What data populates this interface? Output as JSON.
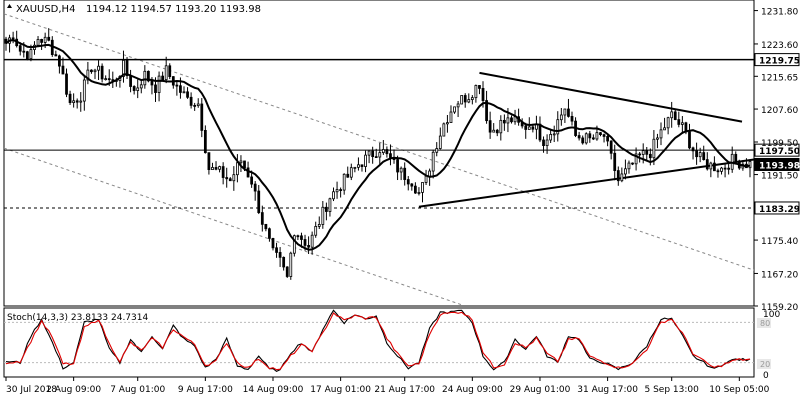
{
  "header": {
    "symbol": "XAUUSD,H4",
    "values": "1194.12 1194.57 1193.20 1193.98"
  },
  "stoch": {
    "label": "Stoch(14,3,3) 23.8133 24.7314",
    "ticks": [
      "100",
      "0"
    ],
    "levels": [
      "80",
      "20"
    ]
  },
  "colors": {
    "candle": "#000000",
    "ma": "#000000",
    "stoch_main": "#000000",
    "stoch_signal": "#e00000",
    "grid": "#cfcfcf",
    "axis": "#000000"
  },
  "chart_data": [
    {
      "type": "candlestick",
      "title": "",
      "ylim": [
        1159.2,
        1234.4
      ],
      "ytick_labels": [
        "1231.80",
        "1223.60",
        "1215.65",
        "1207.60",
        "1199.50",
        "1191.50",
        "1183.29",
        "1175.40",
        "1167.20",
        "1159.20"
      ],
      "xtick_labels": [
        "30 Jul 2018",
        "2 Aug 09:00",
        "7 Aug 01:00",
        "9 Aug 17:00",
        "14 Aug 09:00",
        "17 Aug 01:00",
        "21 Aug 17:00",
        "24 Aug 09:00",
        "29 Aug 01:00",
        "31 Aug 17:00",
        "5 Sep 13:00",
        "10 Sep 05:00"
      ],
      "price_labels": [
        {
          "label": "1219.75",
          "value": 1219.75,
          "style": "solid"
        },
        {
          "label": "1197.50",
          "value": 1197.5,
          "style": "solid"
        },
        {
          "label": "1193.98",
          "value": 1193.98,
          "style": "current"
        },
        {
          "label": "1183.29",
          "value": 1183.29,
          "style": "dashed"
        }
      ],
      "series": [
        {
          "anchors": [
            [
              0,
              1223.8
            ],
            [
              2,
              1226
            ],
            [
              4,
              1222
            ],
            [
              7,
              1221
            ],
            [
              9,
              1225
            ],
            [
              12,
              1224
            ],
            [
              15,
              1219
            ],
            [
              18,
              1209
            ],
            [
              21,
              1211
            ],
            [
              24,
              1218
            ],
            [
              27,
              1216
            ],
            [
              30,
              1214
            ],
            [
              33,
              1218
            ],
            [
              36,
              1212
            ],
            [
              39,
              1216
            ],
            [
              42,
              1213
            ],
            [
              45,
              1217
            ],
            [
              48,
              1213
            ],
            [
              51,
              1210
            ],
            [
              54,
              1209
            ],
            [
              57,
              1193
            ],
            [
              60,
              1192
            ],
            [
              63,
              1190
            ],
            [
              66,
              1195
            ],
            [
              69,
              1190
            ],
            [
              72,
              1180
            ],
            [
              75,
              1172
            ],
            [
              77,
              1170
            ],
            [
              79,
              1166
            ],
            [
              81,
              1178
            ],
            [
              83,
              1176
            ],
            [
              85,
              1174
            ],
            [
              87,
              1178
            ],
            [
              89,
              1182
            ],
            [
              91,
              1186
            ],
            [
              93,
              1188
            ],
            [
              96,
              1191
            ],
            [
              99,
              1194
            ],
            [
              102,
              1196
            ],
            [
              105,
              1198
            ],
            [
              108,
              1195
            ],
            [
              111,
              1192
            ],
            [
              114,
              1190
            ],
            [
              116,
              1187
            ],
            [
              118,
              1190
            ],
            [
              120,
              1197
            ],
            [
              123,
              1204
            ],
            [
              126,
              1209
            ],
            [
              130,
              1211
            ],
            [
              133,
              1214
            ],
            [
              136,
              1202
            ],
            [
              139,
              1204
            ],
            [
              142,
              1205
            ],
            [
              145,
              1203
            ],
            [
              148,
              1204
            ],
            [
              151,
              1200
            ],
            [
              154,
              1203
            ],
            [
              157,
              1208
            ],
            [
              160,
              1201
            ],
            [
              164,
              1200
            ],
            [
              168,
              1201
            ],
            [
              172,
              1190
            ],
            [
              175,
              1193
            ],
            [
              178,
              1196
            ],
            [
              181,
              1197
            ],
            [
              184,
              1202
            ],
            [
              187,
              1206
            ],
            [
              190,
              1203
            ],
            [
              194,
              1196
            ],
            [
              197,
              1194
            ],
            [
              201,
              1193
            ],
            [
              204,
              1195
            ],
            [
              208,
              1194.2
            ]
          ]
        }
      ]
    },
    {
      "type": "line",
      "title": "Stoch(14,3,3) 23.8133 24.7314",
      "ylim": [
        0,
        100
      ],
      "series": [
        {
          "name": "main",
          "anchors": [
            [
              0,
              22
            ],
            [
              4,
              20
            ],
            [
              7,
              60
            ],
            [
              10,
              85
            ],
            [
              13,
              50
            ],
            [
              16,
              12
            ],
            [
              19,
              20
            ],
            [
              22,
              80
            ],
            [
              26,
              85
            ],
            [
              29,
              40
            ],
            [
              32,
              20
            ],
            [
              35,
              55
            ],
            [
              38,
              35
            ],
            [
              41,
              60
            ],
            [
              44,
              40
            ],
            [
              47,
              75
            ],
            [
              50,
              55
            ],
            [
              53,
              45
            ],
            [
              56,
              12
            ],
            [
              59,
              25
            ],
            [
              62,
              55
            ],
            [
              65,
              15
            ],
            [
              68,
              10
            ],
            [
              71,
              30
            ],
            [
              74,
              10
            ],
            [
              77,
              8
            ],
            [
              80,
              35
            ],
            [
              83,
              50
            ],
            [
              86,
              35
            ],
            [
              89,
              70
            ],
            [
              92,
              98
            ],
            [
              95,
              80
            ],
            [
              98,
              92
            ],
            [
              101,
              85
            ],
            [
              104,
              90
            ],
            [
              107,
              50
            ],
            [
              110,
              30
            ],
            [
              113,
              12
            ],
            [
              116,
              20
            ],
            [
              119,
              70
            ],
            [
              122,
              95
            ],
            [
              125,
              95
            ],
            [
              128,
              98
            ],
            [
              131,
              80
            ],
            [
              134,
              30
            ],
            [
              137,
              10
            ],
            [
              140,
              20
            ],
            [
              143,
              55
            ],
            [
              146,
              40
            ],
            [
              149,
              60
            ],
            [
              152,
              30
            ],
            [
              155,
              20
            ],
            [
              158,
              60
            ],
            [
              161,
              55
            ],
            [
              164,
              25
            ],
            [
              168,
              20
            ],
            [
              172,
              10
            ],
            [
              176,
              20
            ],
            [
              180,
              45
            ],
            [
              184,
              85
            ],
            [
              187,
              85
            ],
            [
              190,
              60
            ],
            [
              193,
              30
            ],
            [
              196,
              20
            ],
            [
              199,
              10
            ],
            [
              202,
              20
            ],
            [
              205,
              25
            ],
            [
              208,
              23.8
            ]
          ]
        },
        {
          "name": "signal",
          "anchors": [
            [
              0,
              20
            ],
            [
              4,
              22
            ],
            [
              7,
              52
            ],
            [
              10,
              82
            ],
            [
              13,
              58
            ],
            [
              16,
              18
            ],
            [
              19,
              18
            ],
            [
              22,
              72
            ],
            [
              26,
              85
            ],
            [
              29,
              48
            ],
            [
              32,
              22
            ],
            [
              35,
              50
            ],
            [
              38,
              38
            ],
            [
              41,
              56
            ],
            [
              44,
              43
            ],
            [
              47,
              70
            ],
            [
              50,
              58
            ],
            [
              53,
              47
            ],
            [
              56,
              16
            ],
            [
              59,
              22
            ],
            [
              62,
              50
            ],
            [
              65,
              20
            ],
            [
              68,
              12
            ],
            [
              71,
              26
            ],
            [
              74,
              13
            ],
            [
              77,
              9
            ],
            [
              80,
              30
            ],
            [
              83,
              46
            ],
            [
              86,
              38
            ],
            [
              89,
              64
            ],
            [
              92,
              94
            ],
            [
              95,
              83
            ],
            [
              98,
              90
            ],
            [
              101,
              86
            ],
            [
              104,
              88
            ],
            [
              107,
              56
            ],
            [
              110,
              33
            ],
            [
              113,
              15
            ],
            [
              116,
              18
            ],
            [
              119,
              63
            ],
            [
              122,
              92
            ],
            [
              125,
              94
            ],
            [
              128,
              96
            ],
            [
              131,
              84
            ],
            [
              134,
              36
            ],
            [
              137,
              13
            ],
            [
              140,
              18
            ],
            [
              143,
              50
            ],
            [
              146,
              42
            ],
            [
              149,
              56
            ],
            [
              152,
              33
            ],
            [
              155,
              22
            ],
            [
              158,
              54
            ],
            [
              161,
              56
            ],
            [
              164,
              29
            ],
            [
              168,
              21
            ],
            [
              172,
              12
            ],
            [
              176,
              18
            ],
            [
              180,
              40
            ],
            [
              184,
              80
            ],
            [
              187,
              85
            ],
            [
              190,
              64
            ],
            [
              193,
              34
            ],
            [
              196,
              22
            ],
            [
              199,
              12
            ],
            [
              202,
              18
            ],
            [
              205,
              24
            ],
            [
              208,
              24.7
            ]
          ]
        }
      ]
    }
  ]
}
